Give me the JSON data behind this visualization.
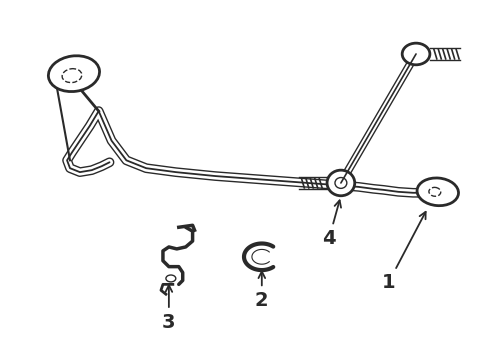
{
  "bg_color": "#ffffff",
  "lc": "#2a2a2a",
  "lw_bar": 2.5,
  "lw_thin": 1.2,
  "figsize": [
    4.9,
    3.6
  ],
  "dpi": 100,
  "bar_outer_lw": 7,
  "bar_white_lw": 5,
  "bar_inner_lw": 1.3,
  "link_outer_lw": 6,
  "link_white_lw": 4,
  "link_inner_lw": 1.2
}
